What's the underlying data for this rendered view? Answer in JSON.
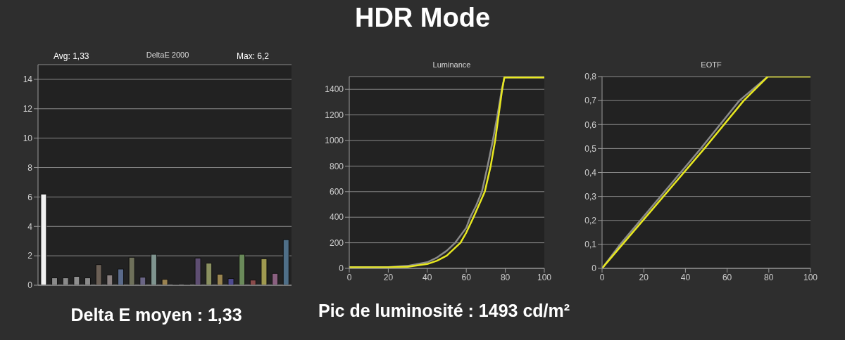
{
  "chart_data": [
    {
      "type": "other",
      "title": "HDR Mode"
    },
    {
      "type": "bar",
      "title": "DeltaE 2000",
      "categories": [
        null,
        null,
        null,
        null,
        null,
        null,
        null,
        null,
        null,
        null,
        null,
        null,
        null,
        null,
        null,
        null,
        null,
        null,
        null,
        null,
        null,
        null,
        null
      ],
      "values": [
        6.2,
        0.5,
        0.5,
        0.6,
        0.5,
        1.4,
        0.7,
        1.1,
        1.9,
        0.55,
        2.1,
        0.4,
        0.05,
        0.05,
        1.85,
        1.5,
        0.75,
        0.45,
        2.1,
        0.35,
        1.8,
        0.8,
        3.1
      ],
      "colors": [
        "#f0f0f0",
        "#8a8a8a",
        "#8a8a8a",
        "#8f8f8f",
        "#8a8a8a",
        "#6b5f55",
        "#8a8080",
        "#5a6a8a",
        "#6e705a",
        "#6a6585",
        "#7f948f",
        "#9a8250",
        "#3a3a3a",
        "#3a3a3a",
        "#5e4e72",
        "#8a9060",
        "#9a8550",
        "#4e4a90",
        "#6a8a5a",
        "#8a4a4a",
        "#a09a50",
        "#8a6080",
        "#4f6f88"
      ],
      "ylim": [
        0,
        15
      ],
      "yticks": [
        0,
        2,
        4,
        6,
        8,
        10,
        12,
        14
      ],
      "grid": "y",
      "tick_labels": "y",
      "annotations": [
        "Avg: 1,33",
        "Max: 6,2",
        "Delta E moyen : 1,33"
      ]
    },
    {
      "type": "line",
      "title": "Luminance",
      "xlim": [
        0,
        100
      ],
      "xticks": [
        0,
        20,
        40,
        60,
        80,
        100
      ],
      "ylim": [
        0,
        1500
      ],
      "yticks": [
        0,
        200,
        400,
        600,
        800,
        1000,
        1200,
        1400
      ],
      "grid": "y",
      "marker": "none",
      "line_style": "solid",
      "series": [
        {
          "color": "#8a8a8a",
          "x": [
            0,
            20,
            30,
            40,
            45,
            50,
            54.3,
            60,
            62,
            65,
            68,
            70.9,
            73.6,
            76,
            78.2,
            79.6,
            100
          ],
          "values": [
            10,
            10,
            20,
            48,
            85,
            138,
            200,
            318,
            400,
            489,
            600,
            800,
            1000,
            1200,
            1400,
            1493,
            1493
          ]
        },
        {
          "color": "#e8e820",
          "x": [
            0,
            20,
            30,
            40,
            45,
            50,
            57,
            60,
            63.7,
            66,
            69.5,
            72.5,
            74.8,
            76.6,
            78.4,
            79.5,
            100
          ],
          "values": [
            8,
            8,
            12,
            34,
            60,
            100,
            200,
            280,
            400,
            480,
            600,
            800,
            1000,
            1200,
            1400,
            1493,
            1493
          ]
        }
      ],
      "annotations": [
        "Pic de luminosité : 1493 cd/m²"
      ]
    },
    {
      "type": "line",
      "title": "EOTF",
      "xlim": [
        0,
        100
      ],
      "xticks": [
        0,
        20,
        40,
        60,
        80,
        100
      ],
      "ylim": [
        0,
        0.8
      ],
      "yticks": [
        0,
        {
          "value": 0.1,
          "label": "0,1"
        },
        {
          "value": 0.2,
          "label": "0,2"
        },
        {
          "value": 0.3,
          "label": "0,3"
        },
        {
          "value": 0.4,
          "label": "0,4"
        },
        {
          "value": 0.5,
          "label": "0,5"
        },
        {
          "value": 0.6,
          "label": "0,6"
        },
        {
          "value": 0.7,
          "label": "0,7"
        },
        {
          "value": 0.8,
          "label": "0,8"
        }
      ],
      "grid": "y",
      "marker": "none",
      "line_style": "solid",
      "series": [
        {
          "color": "#8a8a8a",
          "x": [
            0,
            8.7,
            47.4,
            65.9,
            79.5,
            100
          ],
          "values": [
            0,
            0.1,
            0.5,
            0.7,
            0.8,
            0.8
          ]
        },
        {
          "color": "#e8e820",
          "x": [
            0,
            9.8,
            49.1,
            68,
            79.5,
            100
          ],
          "values": [
            0,
            0.1,
            0.5,
            0.7,
            0.8,
            0.8
          ]
        }
      ]
    }
  ]
}
